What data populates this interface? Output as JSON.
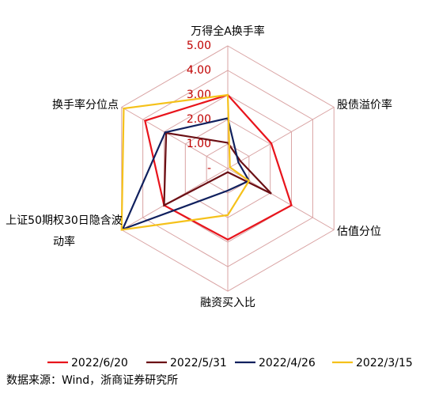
{
  "chart_data": {
    "type": "radar",
    "categories": [
      "万得全A换手率",
      "股债溢价率",
      "估值分位",
      "融资买入比",
      "上证50期权30日隐含波动率",
      "换手率分位点"
    ],
    "series": [
      {
        "name": "2022/6/20",
        "color": "#e8141c",
        "values": [
          3.0,
          2.05,
          3.0,
          2.9,
          3.0,
          3.9
        ]
      },
      {
        "name": "2022/5/31",
        "color": "#6b0f14",
        "values": [
          1.05,
          0.6,
          2.05,
          0.15,
          3.0,
          2.9
        ]
      },
      {
        "name": "2022/4/26",
        "color": "#10205e",
        "values": [
          2.05,
          0.5,
          1.0,
          0.9,
          4.95,
          2.95
        ]
      },
      {
        "name": "2022/3/15",
        "color": "#f5c11a",
        "values": [
          3.0,
          0.1,
          1.0,
          1.9,
          5.0,
          4.9
        ]
      }
    ],
    "ylim": [
      0,
      5
    ],
    "yticks": [
      {
        "value": 0,
        "label": "-"
      },
      {
        "value": 1,
        "label": "1.00"
      },
      {
        "value": 2,
        "label": "2.00"
      },
      {
        "value": 3,
        "label": "3.00"
      },
      {
        "value": 4,
        "label": "4.00"
      },
      {
        "value": 5,
        "label": "5.00"
      }
    ],
    "grid_color": "#d9a3a3",
    "source": "数据来源：Wind，浙商证券研究所"
  }
}
